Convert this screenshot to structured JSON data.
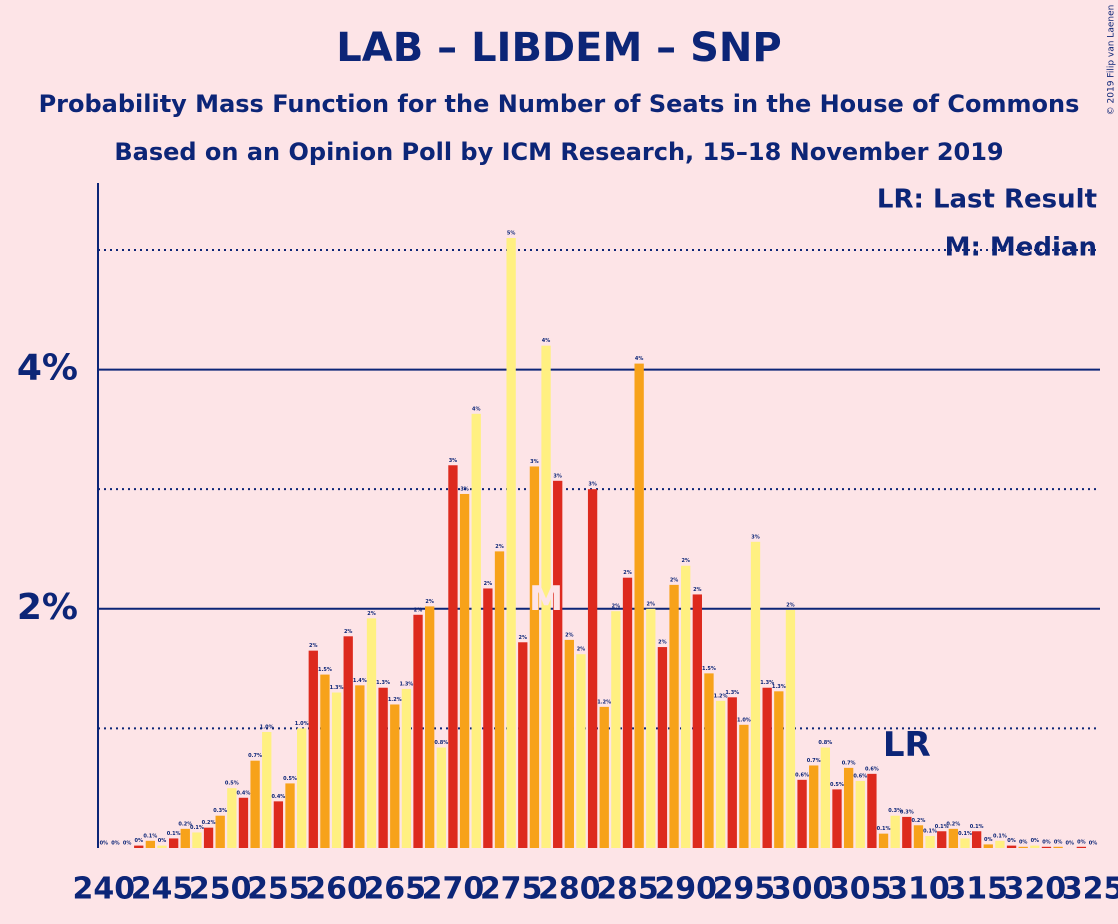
{
  "chart_data": {
    "type": "bar",
    "title": "LAB – LIBDEM – SNP",
    "subtitle": "Probability Mass Function for the Number of Seats in the House of Commons",
    "subtitle2": "Based on an Opinion Poll by ICM Research, 15–18 November 2019",
    "legend_lines": [
      "LR: Last Result",
      "M: Median"
    ],
    "copyright": "© 2019 Filip van Laenen",
    "x": [
      240,
      241,
      242,
      243,
      244,
      245,
      246,
      247,
      248,
      249,
      250,
      251,
      252,
      253,
      254,
      255,
      256,
      257,
      258,
      259,
      260,
      261,
      262,
      263,
      264,
      265,
      266,
      267,
      268,
      269,
      270,
      271,
      272,
      273,
      274,
      275,
      276,
      277,
      278,
      279,
      280,
      281,
      282,
      283,
      284,
      285,
      286,
      287,
      288,
      289,
      290,
      291,
      292,
      293,
      294,
      295,
      296,
      297,
      298,
      299,
      300,
      301,
      302,
      303,
      304,
      305,
      306,
      307,
      308,
      309,
      310,
      311,
      312,
      313,
      314,
      315,
      316,
      317,
      318,
      319,
      320,
      321,
      322,
      323,
      324,
      325
    ],
    "values": [
      0,
      0,
      0,
      0.02,
      0.06,
      0.02,
      0.08,
      0.16,
      0.13,
      0.17,
      0.27,
      0.5,
      0.42,
      0.73,
      0.97,
      0.39,
      0.54,
      1.0,
      1.65,
      1.45,
      1.3,
      1.77,
      1.36,
      1.92,
      1.34,
      1.2,
      1.33,
      1.95,
      2.02,
      0.84,
      3.2,
      2.96,
      3.63,
      2.17,
      2.48,
      5.1,
      1.72,
      3.19,
      4.2,
      3.07,
      1.74,
      1.62,
      3.0,
      1.18,
      1.98,
      2.26,
      4.05,
      2.0,
      1.68,
      2.2,
      2.36,
      2.12,
      1.46,
      1.23,
      1.26,
      1.03,
      2.56,
      1.34,
      1.31,
      1.99,
      0.57,
      0.69,
      0.84,
      0.49,
      0.67,
      0.56,
      0.62,
      0.12,
      0.27,
      0.26,
      0.19,
      0.1,
      0.14,
      0.16,
      0.08,
      0.14,
      0.03,
      0.06,
      0.02,
      0.01,
      0.02,
      0.01,
      0.01,
      0,
      0.01,
      0
    ],
    "value_labels": [
      "0%",
      "0%",
      "0%",
      "0%",
      "0.1%",
      "0%",
      "0.1%",
      "0.2%",
      "0.1%",
      "0.2%",
      "0.3%",
      "0.5%",
      "0.4%",
      "0.7%",
      "1.0%",
      "0.4%",
      "0.5%",
      "1.0%",
      "2%",
      "1.5%",
      "1.3%",
      "2%",
      "1.4%",
      "2%",
      "1.3%",
      "1.2%",
      "1.3%",
      "2%",
      "2%",
      "0.8%",
      "3%",
      "3%",
      "4%",
      "2%",
      "2%",
      "5%",
      "2%",
      "3%",
      "4%",
      "3%",
      "2%",
      "2%",
      "3%",
      "1.2%",
      "2%",
      "2%",
      "4%",
      "2%",
      "2%",
      "2%",
      "2%",
      "2%",
      "1.5%",
      "1.2%",
      "1.3%",
      "1.0%",
      "3%",
      "1.3%",
      "1.3%",
      "2%",
      "0.6%",
      "0.7%",
      "0.8%",
      "0.5%",
      "0.7%",
      "0.6%",
      "0.6%",
      "0.1%",
      "0.3%",
      "0.3%",
      "0.2%",
      "0.1%",
      "0.1%",
      "0.2%",
      "0.1%",
      "0.1%",
      "0%",
      "0.1%",
      "0%",
      "0%",
      "0%",
      "0%",
      "0%",
      "0%",
      "0%",
      "0%"
    ],
    "colors": [
      "#dd2a1e",
      "#f7a21a",
      "#fff081"
    ],
    "xlim": [
      239.5,
      325.6
    ],
    "xticks": [
      240,
      245,
      250,
      255,
      260,
      265,
      270,
      275,
      280,
      285,
      290,
      295,
      300,
      305,
      310,
      315,
      320,
      325
    ],
    "ylim": [
      0,
      5.56
    ],
    "yticks": [
      {
        "value": 2,
        "label": "2%"
      },
      {
        "value": 4,
        "label": "4%"
      }
    ],
    "minor_yticks": [
      1,
      3,
      5
    ],
    "annotations": [
      {
        "text": "M",
        "x": 278,
        "y": 2.07,
        "color": "#fde4e7"
      },
      {
        "text": "LR",
        "x": 309,
        "y": 0.85,
        "color": "#0c2577"
      }
    ]
  }
}
